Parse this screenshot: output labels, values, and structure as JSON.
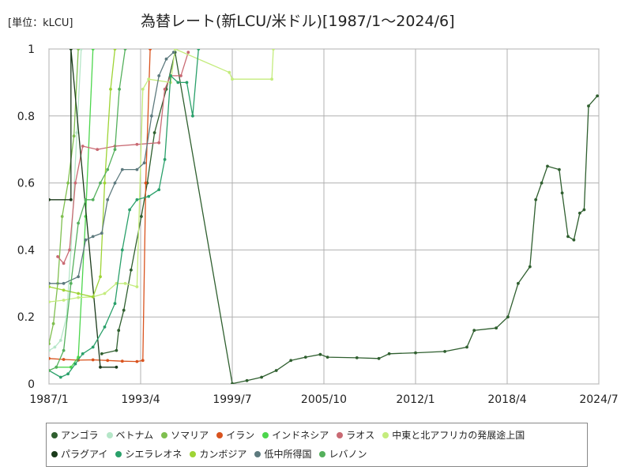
{
  "unit_label": "[単位：kLCU]",
  "title": "為替レート(新LCU/米ドル)[1987/1～2024/6]",
  "chart_data": {
    "type": "line",
    "xlabel": "",
    "ylabel": "",
    "x_ticks": [
      "1987/1",
      "1993/4",
      "1999/7",
      "2005/10",
      "2012/1",
      "2018/4",
      "2024/7"
    ],
    "y_ticks": [
      "0",
      "0.2",
      "0.4",
      "0.6",
      "0.8",
      "1"
    ],
    "xlim": [
      "1987/1",
      "2024/7"
    ],
    "ylim": [
      0,
      1
    ],
    "grid": true,
    "legend_position": "bottom",
    "series": [
      {
        "name": "アンゴラ",
        "color": "#2f5f2f",
        "points": [
          [
            1990.6,
            0.09
          ],
          [
            1991.6,
            0.1
          ],
          [
            1991.75,
            0.16
          ],
          [
            1992.1,
            0.22
          ],
          [
            1992.6,
            0.34
          ],
          [
            1993.3,
            0.5
          ],
          [
            1993.7,
            0.6
          ],
          [
            1994.2,
            0.75
          ],
          [
            1995.0,
            0.88
          ],
          [
            1995.6,
            0.99
          ],
          [
            1999.5,
            0.001
          ],
          [
            2000.5,
            0.01
          ],
          [
            2001.5,
            0.02
          ],
          [
            2002.5,
            0.04
          ],
          [
            2003.5,
            0.07
          ],
          [
            2004.5,
            0.08
          ],
          [
            2005.5,
            0.088
          ],
          [
            2006.0,
            0.08
          ],
          [
            2008.0,
            0.078
          ],
          [
            2009.5,
            0.076
          ],
          [
            2010.2,
            0.09
          ],
          [
            2012.0,
            0.093
          ],
          [
            2014.0,
            0.097
          ],
          [
            2015.5,
            0.11
          ],
          [
            2016.0,
            0.16
          ],
          [
            2017.5,
            0.167
          ],
          [
            2018.3,
            0.2
          ],
          [
            2019.0,
            0.3
          ],
          [
            2019.8,
            0.35
          ],
          [
            2020.2,
            0.55
          ],
          [
            2020.6,
            0.6
          ],
          [
            2021.0,
            0.65
          ],
          [
            2021.8,
            0.64
          ],
          [
            2022.0,
            0.57
          ],
          [
            2022.4,
            0.44
          ],
          [
            2022.8,
            0.43
          ],
          [
            2023.2,
            0.51
          ],
          [
            2023.5,
            0.52
          ],
          [
            2023.8,
            0.83
          ],
          [
            2024.4,
            0.86
          ]
        ]
      },
      {
        "name": "ベトナム",
        "color": "#b5e6c8",
        "points": [
          [
            1987.0,
            0.1
          ],
          [
            1987.4,
            0.11
          ],
          [
            1987.8,
            0.13
          ],
          [
            1988.2,
            0.2
          ],
          [
            1988.5,
            0.4
          ],
          [
            1988.9,
            0.75
          ],
          [
            1989.2,
            1.0
          ]
        ]
      },
      {
        "name": "ソマリア",
        "color": "#7fbf4f",
        "points": [
          [
            1987.0,
            0.12
          ],
          [
            1987.3,
            0.18
          ],
          [
            1987.6,
            0.3
          ],
          [
            1987.9,
            0.5
          ],
          [
            1988.3,
            0.6
          ],
          [
            1988.7,
            0.74
          ],
          [
            1989.0,
            1.0
          ]
        ]
      },
      {
        "name": "イラン",
        "color": "#d9531e",
        "points": [
          [
            1987.0,
            0.076
          ],
          [
            1988.0,
            0.073
          ],
          [
            1989.0,
            0.071
          ],
          [
            1990.0,
            0.072
          ],
          [
            1991.0,
            0.07
          ],
          [
            1992.0,
            0.068
          ],
          [
            1993.0,
            0.067
          ],
          [
            1993.4,
            0.07
          ],
          [
            1993.6,
            0.6
          ],
          [
            1993.9,
            1.0
          ]
        ]
      },
      {
        "name": "インドネシア",
        "color": "#4cd64c",
        "points": [
          [
            1987.5,
            0.05
          ],
          [
            1988.5,
            0.05
          ],
          [
            1989.0,
            0.08
          ],
          [
            1989.5,
            0.5
          ],
          [
            1990.0,
            1.0
          ]
        ]
      },
      {
        "name": "ラオス",
        "color": "#c96a73",
        "points": [
          [
            1987.6,
            0.38
          ],
          [
            1988.0,
            0.36
          ],
          [
            1988.4,
            0.4
          ],
          [
            1988.8,
            0.6
          ],
          [
            1989.3,
            0.71
          ],
          [
            1990.3,
            0.7
          ],
          [
            1991.5,
            0.71
          ],
          [
            1993.0,
            0.715
          ],
          [
            1994.5,
            0.72
          ],
          [
            1994.9,
            0.88
          ],
          [
            1995.3,
            0.92
          ],
          [
            1996.0,
            0.92
          ],
          [
            1996.5,
            0.99
          ]
        ]
      },
      {
        "name": "中東と北アフリカの発展途上国",
        "color": "#c4ec7d",
        "points": [
          [
            1987.0,
            0.245
          ],
          [
            1988.0,
            0.25
          ],
          [
            1989.0,
            0.258
          ],
          [
            1990.0,
            0.26
          ],
          [
            1990.8,
            0.27
          ],
          [
            1991.6,
            0.3
          ],
          [
            1992.2,
            0.3
          ],
          [
            1993.0,
            0.29
          ],
          [
            1993.4,
            0.88
          ],
          [
            1993.8,
            0.91
          ],
          [
            1995.3,
            0.9
          ],
          [
            1995.6,
            1.0
          ],
          [
            1999.3,
            0.93
          ],
          [
            1999.5,
            0.91
          ],
          [
            2002.2,
            0.91
          ],
          [
            2002.3,
            1.0
          ]
        ]
      },
      {
        "name": "パラグアイ",
        "color": "#1a3a1a",
        "points": [
          [
            1987.0,
            0.55
          ],
          [
            1988.5,
            0.55
          ],
          [
            1988.5,
            1.0
          ],
          [
            1990.5,
            0.05
          ],
          [
            1991.6,
            0.05
          ]
        ]
      },
      {
        "name": "シエラレオネ",
        "color": "#2aa06a",
        "points": [
          [
            1987.0,
            0.04
          ],
          [
            1987.8,
            0.02
          ],
          [
            1988.3,
            0.03
          ],
          [
            1988.8,
            0.06
          ],
          [
            1989.3,
            0.09
          ],
          [
            1990.0,
            0.11
          ],
          [
            1990.8,
            0.17
          ],
          [
            1991.5,
            0.24
          ],
          [
            1992.0,
            0.4
          ],
          [
            1992.5,
            0.52
          ],
          [
            1993.0,
            0.55
          ],
          [
            1993.8,
            0.56
          ],
          [
            1994.5,
            0.58
          ],
          [
            1994.9,
            0.67
          ],
          [
            1995.3,
            0.92
          ],
          [
            1995.8,
            0.9
          ],
          [
            1996.4,
            0.9
          ],
          [
            1996.8,
            0.8
          ],
          [
            1997.2,
            1.0
          ]
        ]
      },
      {
        "name": "カンボジア",
        "color": "#9ed435",
        "points": [
          [
            1987.0,
            0.29
          ],
          [
            1988.0,
            0.28
          ],
          [
            1989.0,
            0.27
          ],
          [
            1990.0,
            0.26
          ],
          [
            1990.5,
            0.32
          ],
          [
            1990.8,
            0.6
          ],
          [
            1991.2,
            0.88
          ],
          [
            1991.5,
            1.0
          ]
        ]
      },
      {
        "name": "低中所得国",
        "color": "#5d7a7e",
        "points": [
          [
            1987.0,
            0.3
          ],
          [
            1988.0,
            0.3
          ],
          [
            1989.0,
            0.32
          ],
          [
            1989.5,
            0.43
          ],
          [
            1990.0,
            0.44
          ],
          [
            1990.6,
            0.45
          ],
          [
            1991.0,
            0.55
          ],
          [
            1991.5,
            0.6
          ],
          [
            1992.0,
            0.64
          ],
          [
            1993.0,
            0.64
          ],
          [
            1993.5,
            0.66
          ],
          [
            1994.0,
            0.8
          ],
          [
            1994.5,
            0.92
          ],
          [
            1995.0,
            0.97
          ],
          [
            1995.5,
            0.99
          ]
        ]
      },
      {
        "name": "レバノン",
        "color": "#54b05c",
        "points": [
          [
            1987.0,
            0.04
          ],
          [
            1987.5,
            0.05
          ],
          [
            1988.0,
            0.1
          ],
          [
            1988.5,
            0.3
          ],
          [
            1989.0,
            0.48
          ],
          [
            1989.5,
            0.55
          ],
          [
            1990.0,
            0.55
          ],
          [
            1990.5,
            0.6
          ],
          [
            1991.0,
            0.64
          ],
          [
            1991.5,
            0.7
          ],
          [
            1991.8,
            0.88
          ],
          [
            1992.2,
            1.0
          ]
        ]
      }
    ]
  }
}
